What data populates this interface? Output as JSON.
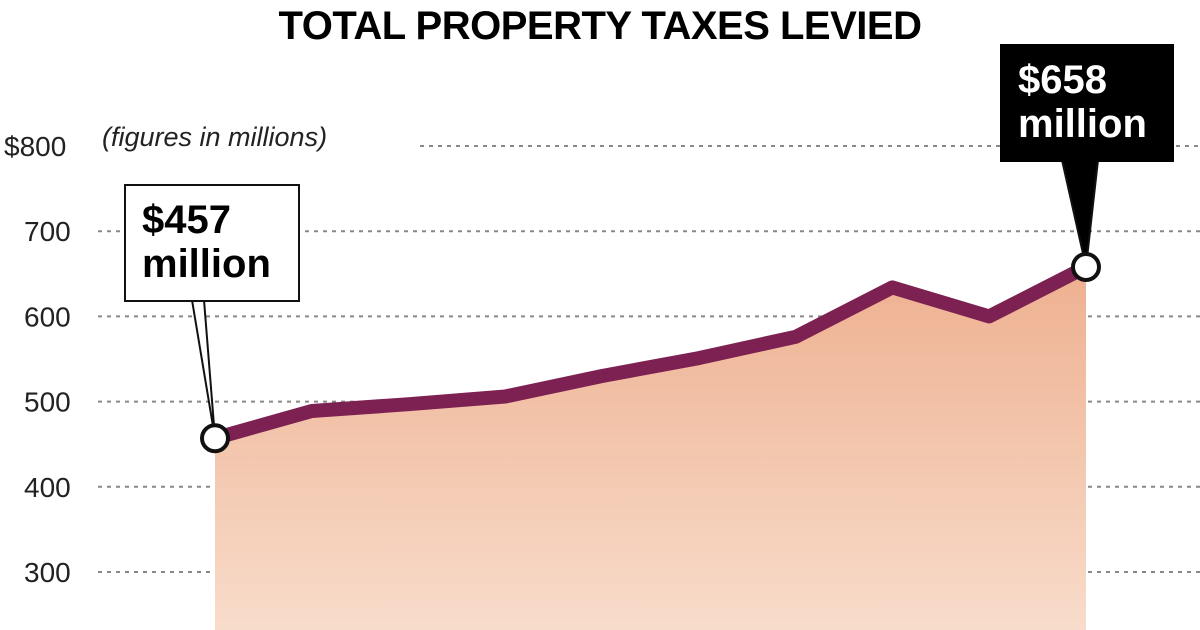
{
  "chart_data": {
    "type": "area",
    "title": "TOTAL PROPERTY TAXES LEVIED",
    "note": "(figures in millions)",
    "ylabel": "",
    "xlabel": "",
    "ylim": [
      250,
      800
    ],
    "yticks": [
      {
        "value": 800,
        "label": "$800"
      },
      {
        "value": 700,
        "label": "700"
      },
      {
        "value": 600,
        "label": "600"
      },
      {
        "value": 500,
        "label": "500"
      },
      {
        "value": 400,
        "label": "400"
      },
      {
        "value": 300,
        "label": "300"
      }
    ],
    "series": [
      {
        "name": "Total property taxes levied",
        "values": [
          457,
          489,
          497,
          506,
          530,
          551,
          576,
          634,
          600,
          658
        ]
      }
    ],
    "annotations": [
      {
        "index": 0,
        "label_line1": "$457",
        "label_line2": "million",
        "style": "light"
      },
      {
        "index": 9,
        "label_line1": "$658",
        "label_line2": "million",
        "style": "dark"
      }
    ],
    "colors": {
      "line": "#7d2152",
      "fill_top": "#eeb090",
      "fill_bottom": "#f8dccb",
      "grid": "#888888",
      "marker_fill": "#ffffff",
      "marker_stroke": "#111111"
    }
  }
}
